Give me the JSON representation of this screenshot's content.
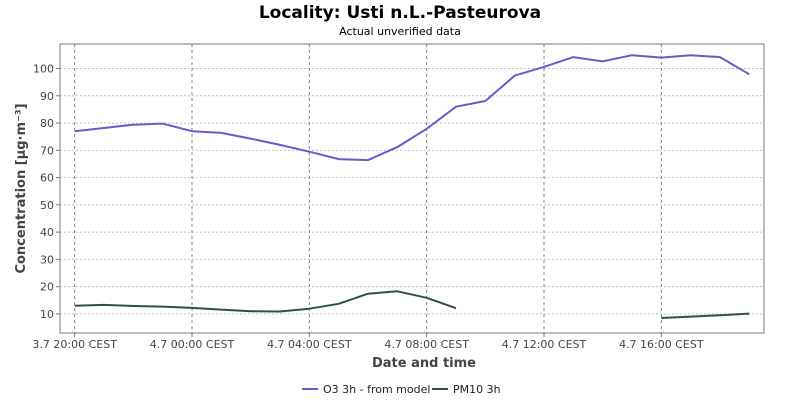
{
  "chart_data": {
    "type": "line",
    "title": "Locality: Usti n.L.-Pasteurova",
    "subtitle": "Actual unverified data",
    "xlabel": "Date and time",
    "ylabel": "Concentration [µg·m⁻³]",
    "x_start_hour": 20,
    "x_step_hours": 1,
    "x_ticks": [
      {
        "hour": 20,
        "label": "3.7 20:00 CEST"
      },
      {
        "hour": 24,
        "label": "4.7 00:00 CEST"
      },
      {
        "hour": 28,
        "label": "4.7 04:00 CEST"
      },
      {
        "hour": 32,
        "label": "4.7 08:00 CEST"
      },
      {
        "hour": 36,
        "label": "4.7 12:00 CEST"
      },
      {
        "hour": 40,
        "label": "4.7 16:00 CEST"
      }
    ],
    "xlim": [
      19.5,
      43.5
    ],
    "ylim": [
      3,
      109
    ],
    "y_ticks": [
      10,
      20,
      30,
      40,
      50,
      60,
      70,
      80,
      90,
      100
    ],
    "grid": true,
    "legend_position": "bottom",
    "series": [
      {
        "name": "O3 3h - from model",
        "color": "#6a5acd",
        "values": [
          77.0,
          78.2,
          79.4,
          79.8,
          77.0,
          76.4,
          74.3,
          72.0,
          69.5,
          66.8,
          66.4,
          71.2,
          77.9,
          86.0,
          88.1,
          97.4,
          100.6,
          104.2,
          102.6,
          104.9,
          104.0,
          104.9,
          104.2,
          97.9
        ]
      },
      {
        "name": "PM10 3h",
        "color": "#2f4f4f",
        "values": [
          13.0,
          13.3,
          12.9,
          12.7,
          12.2,
          11.6,
          11.0,
          10.9,
          11.9,
          13.7,
          17.4,
          18.3,
          15.9,
          12.1,
          null,
          null,
          null,
          null,
          null,
          null,
          8.5,
          9.0,
          9.5,
          10.1
        ]
      }
    ]
  }
}
